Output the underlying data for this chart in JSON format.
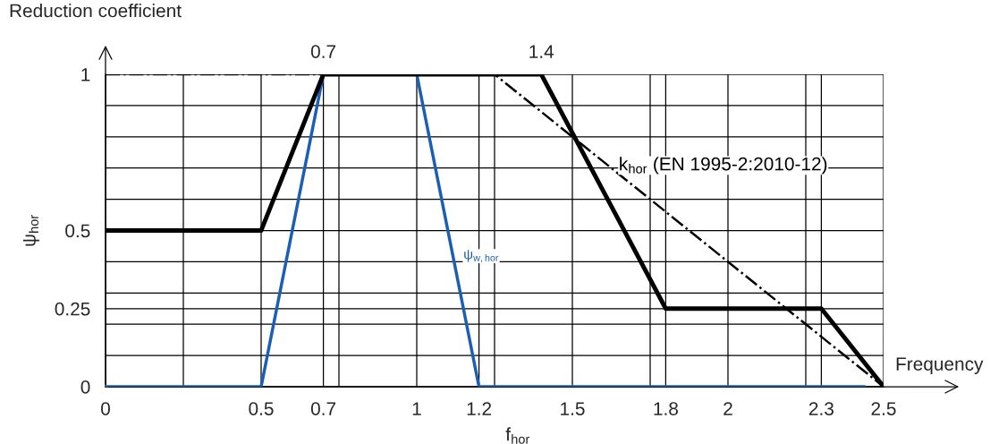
{
  "chart_data": {
    "type": "line",
    "xlabel": "f$_{hor}$",
    "ylabel": "ψ$_{hor}$",
    "annotations": [
      "Reduction coefficient",
      "Frequency",
      {
        "text": "0.7",
        "x": 0.7,
        "y": 1
      },
      {
        "text": "1.4",
        "x": 1.4,
        "y": 1
      }
    ],
    "xlim": [
      0,
      2.5
    ],
    "ylim": [
      0,
      1
    ],
    "xticks": [
      0,
      {
        "value": 0.25,
        "label": null
      },
      0.5,
      0.7,
      {
        "value": 0.75,
        "label": null
      },
      1,
      1.2,
      {
        "value": 1.25,
        "label": null
      },
      1.5,
      {
        "value": 1.75,
        "label": null
      },
      1.8,
      2,
      {
        "value": 2.25,
        "label": null
      },
      2.3,
      2.5
    ],
    "yticks": [
      0,
      {
        "value": 0.1,
        "label": null
      },
      {
        "value": 0.2,
        "label": null
      },
      0.25,
      {
        "value": 0.3,
        "label": null
      },
      {
        "value": 0.4,
        "label": null
      },
      0.5,
      {
        "value": 0.6,
        "label": null
      },
      {
        "value": 0.7,
        "label": null
      },
      {
        "value": 0.8,
        "label": null
      },
      {
        "value": 0.9,
        "label": null
      },
      1
    ],
    "grid": true,
    "legend": false,
    "marker": "none",
    "series": [
      {
        "color": "#000000",
        "x": [
          0,
          0.5,
          0.7,
          1.4,
          1.8,
          2.3,
          2.5
        ],
        "values": [
          0.5,
          0.5,
          1,
          1,
          0.25,
          0.25,
          0
        ],
        "line_style": "solid"
      },
      {
        "name": "ψ$_{w,hor}$",
        "color": "#1a5fb4",
        "x": [
          0,
          0.5,
          0.7,
          1,
          1.2,
          2.44
        ],
        "values": [
          0,
          0,
          1,
          1,
          0,
          0
        ],
        "line_style": "solid"
      },
      {
        "name": "k$_{hor}$ (EN 1995-2:2010-12)",
        "color": "#000000",
        "x": [
          0,
          1.25,
          2.5
        ],
        "values": [
          1,
          1,
          0
        ],
        "line_style": "dashdot"
      }
    ]
  }
}
